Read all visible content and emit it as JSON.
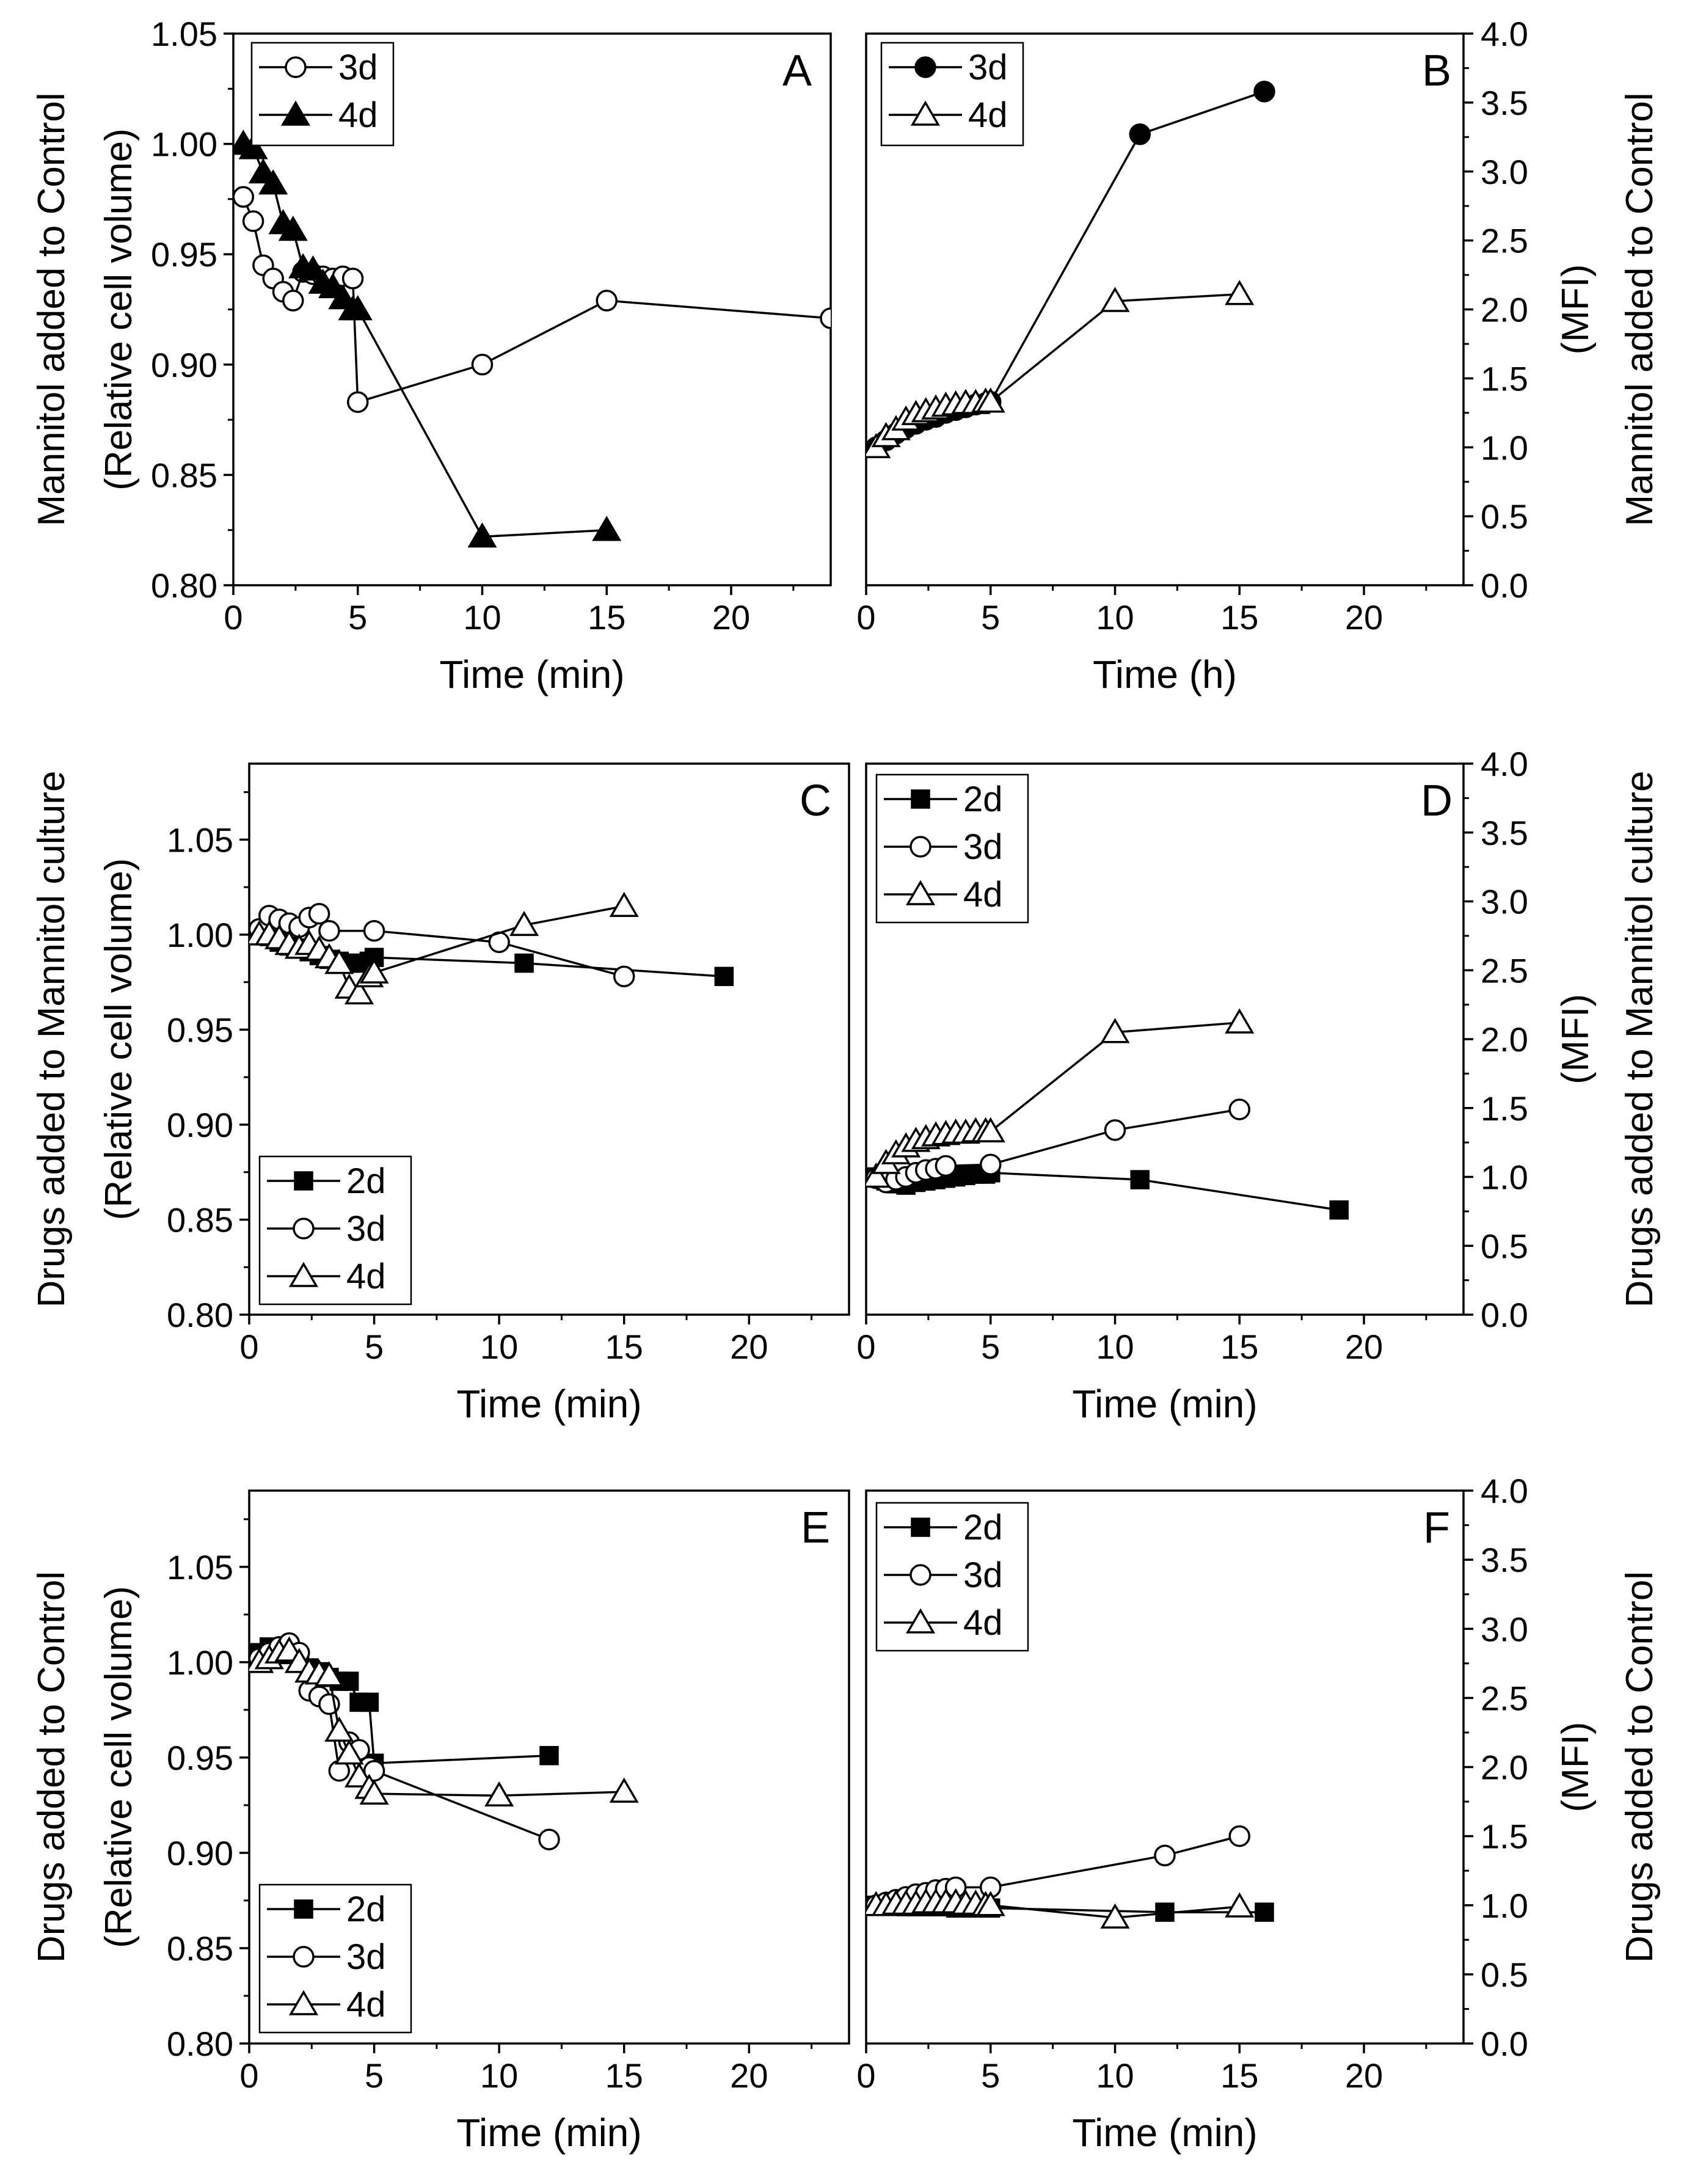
{
  "chart_data": [
    {
      "panel": "A",
      "type": "line",
      "xlabel": "Time (min)",
      "ylabel_lines": [
        "Mannitol added to Control",
        "(Relative cell volume)"
      ],
      "xlim": [
        0,
        24
      ],
      "ylim": [
        0.8,
        1.05
      ],
      "xticks": [
        "0",
        "5",
        "10",
        "15",
        "20"
      ],
      "yticks": [
        "0.80",
        "0.85",
        "0.90",
        "0.95",
        "1.00",
        "1.05"
      ],
      "legend_position": "top-left",
      "series": [
        {
          "name": "3d",
          "marker": "circle",
          "filled": false,
          "x": [
            0.4,
            0.8,
            1.2,
            1.6,
            2.0,
            2.4,
            2.8,
            3.2,
            3.6,
            4.0,
            4.4,
            4.8,
            5.0,
            10,
            15,
            24
          ],
          "y": [
            0.976,
            0.965,
            0.945,
            0.939,
            0.933,
            0.929,
            0.942,
            0.941,
            0.94,
            0.939,
            0.94,
            0.939,
            0.883,
            0.9,
            0.929,
            0.921
          ]
        },
        {
          "name": "4d",
          "marker": "triangle",
          "filled": true,
          "x": [
            0.4,
            0.8,
            1.2,
            1.6,
            2.0,
            2.4,
            2.8,
            3.2,
            3.6,
            4.0,
            4.4,
            4.8,
            5.0,
            10,
            15
          ],
          "y": [
            1.0,
            0.998,
            0.987,
            0.982,
            0.964,
            0.961,
            0.944,
            0.943,
            0.937,
            0.935,
            0.93,
            0.925,
            0.925,
            0.822,
            0.825
          ]
        }
      ]
    },
    {
      "panel": "B",
      "type": "line",
      "xlabel": "Time (h)",
      "ylabel_lines": [
        "Mannitol added to Control",
        "(MFI)"
      ],
      "xlim": [
        0,
        24
      ],
      "ylim": [
        0,
        4.0
      ],
      "xticks": [
        "0",
        "5",
        "10",
        "15",
        "20"
      ],
      "yticks": [
        "0.0",
        "0.5",
        "1.0",
        "1.5",
        "2.0",
        "2.5",
        "3.0",
        "3.5",
        "4.0"
      ],
      "legend_position": "top-left",
      "series": [
        {
          "name": "3d",
          "marker": "circle",
          "filled": true,
          "x": [
            0.4,
            0.8,
            1.2,
            1.6,
            2.0,
            2.4,
            2.8,
            3.2,
            3.6,
            4.0,
            4.4,
            4.8,
            5.0,
            11,
            16
          ],
          "y": [
            1.0,
            1.05,
            1.1,
            1.14,
            1.17,
            1.2,
            1.22,
            1.25,
            1.27,
            1.29,
            1.31,
            1.32,
            1.33,
            3.27,
            3.58
          ]
        },
        {
          "name": "4d",
          "marker": "triangle",
          "filled": false,
          "x": [
            0.4,
            0.8,
            1.2,
            1.6,
            2.0,
            2.4,
            2.8,
            3.2,
            3.6,
            4.0,
            4.4,
            4.8,
            5.0,
            10,
            15
          ],
          "y": [
            1.0,
            1.08,
            1.13,
            1.2,
            1.24,
            1.26,
            1.28,
            1.3,
            1.31,
            1.32,
            1.32,
            1.33,
            1.33,
            2.06,
            2.11
          ]
        }
      ]
    },
    {
      "panel": "C",
      "type": "line",
      "xlabel": "Time (min)",
      "ylabel_lines": [
        "Drugs added to Mannitol culture",
        "(Relative cell volume)"
      ],
      "xlim": [
        0,
        24
      ],
      "ylim": [
        0.8,
        1.09
      ],
      "xticks": [
        "0",
        "5",
        "10",
        "15",
        "20"
      ],
      "yticks": [
        "0.80",
        "0.85",
        "0.90",
        "0.95",
        "1.00",
        "1.05"
      ],
      "legend_position": "bottom-left",
      "series": [
        {
          "name": "2d",
          "marker": "square",
          "filled": true,
          "x": [
            0.4,
            0.8,
            1.2,
            1.6,
            2.0,
            2.4,
            2.8,
            3.2,
            3.6,
            4.0,
            4.4,
            4.8,
            5.0,
            11,
            19
          ],
          "y": [
            1.0,
            0.999,
            0.996,
            0.994,
            0.993,
            0.991,
            0.989,
            0.987,
            0.986,
            0.985,
            0.985,
            0.986,
            0.988,
            0.985,
            0.978
          ]
        },
        {
          "name": "3d",
          "marker": "circle",
          "filled": false,
          "x": [
            0.4,
            0.8,
            1.2,
            1.6,
            2.0,
            2.4,
            2.8,
            3.2,
            5.0,
            10,
            15
          ],
          "y": [
            1.003,
            1.01,
            1.008,
            1.006,
            1.004,
            1.009,
            1.011,
            1.002,
            1.002,
            0.996,
            0.978
          ]
        },
        {
          "name": "4d",
          "marker": "triangle",
          "filled": false,
          "x": [
            0.4,
            0.8,
            1.2,
            1.6,
            2.0,
            2.4,
            2.8,
            3.2,
            3.6,
            4.0,
            4.4,
            4.8,
            5.0,
            11,
            15
          ],
          "y": [
            1.0,
            1.0,
            0.998,
            0.995,
            0.993,
            0.995,
            0.992,
            0.988,
            0.985,
            0.972,
            0.969,
            0.978,
            0.98,
            1.005,
            1.015
          ]
        }
      ]
    },
    {
      "panel": "D",
      "type": "line",
      "xlabel": "Time (min)",
      "ylabel_lines": [
        "Drugs added to Mannitol culture",
        "(MFI)"
      ],
      "xlim": [
        0,
        24
      ],
      "ylim": [
        0,
        4.0
      ],
      "xticks": [
        "0",
        "5",
        "10",
        "15",
        "20"
      ],
      "yticks": [
        "0.0",
        "0.5",
        "1.0",
        "1.5",
        "2.0",
        "2.5",
        "3.0",
        "3.5",
        "4.0"
      ],
      "legend_position": "top-left",
      "series": [
        {
          "name": "2d",
          "marker": "square",
          "filled": true,
          "x": [
            0.4,
            0.8,
            1.2,
            1.6,
            2.0,
            2.4,
            2.8,
            3.2,
            3.6,
            4.0,
            4.4,
            4.8,
            5.0,
            11,
            19
          ],
          "y": [
            1.0,
            0.97,
            0.95,
            0.94,
            0.96,
            0.97,
            0.98,
            0.99,
            1.0,
            1.01,
            1.02,
            1.02,
            1.03,
            0.98,
            0.76
          ]
        },
        {
          "name": "3d",
          "marker": "circle",
          "filled": false,
          "x": [
            0.4,
            0.8,
            1.2,
            1.6,
            2.0,
            2.4,
            2.8,
            3.2,
            5.0,
            10,
            15
          ],
          "y": [
            0.99,
            0.96,
            0.98,
            1.0,
            1.03,
            1.05,
            1.06,
            1.08,
            1.09,
            1.34,
            1.49
          ]
        },
        {
          "name": "4d",
          "marker": "triangle",
          "filled": false,
          "x": [
            0.4,
            0.8,
            1.2,
            1.6,
            2.0,
            2.4,
            2.8,
            3.2,
            3.6,
            4.0,
            4.4,
            4.8,
            5.0,
            10,
            15
          ],
          "y": [
            1.0,
            1.1,
            1.17,
            1.22,
            1.26,
            1.28,
            1.3,
            1.31,
            1.32,
            1.32,
            1.33,
            1.33,
            1.33,
            2.05,
            2.12
          ]
        }
      ]
    },
    {
      "panel": "E",
      "type": "line",
      "xlabel": "Time (min)",
      "ylabel_lines": [
        "Drugs added to Control",
        "(Relative cell volume)"
      ],
      "xlim": [
        0,
        24
      ],
      "ylim": [
        0.8,
        1.09
      ],
      "xticks": [
        "0",
        "5",
        "10",
        "15",
        "20"
      ],
      "yticks": [
        "0.80",
        "0.85",
        "0.90",
        "0.95",
        "1.00",
        "1.05"
      ],
      "legend_position": "bottom-left",
      "series": [
        {
          "name": "2d",
          "marker": "square",
          "filled": true,
          "x": [
            0.4,
            0.8,
            1.2,
            1.6,
            2.0,
            2.4,
            2.8,
            3.2,
            3.6,
            4.0,
            4.4,
            4.8,
            5.0,
            12
          ],
          "y": [
            1.005,
            1.008,
            1.006,
            1.004,
            1.001,
            0.997,
            0.995,
            0.992,
            0.99,
            0.99,
            0.979,
            0.979,
            0.947,
            0.951
          ]
        },
        {
          "name": "3d",
          "marker": "circle",
          "filled": false,
          "x": [
            0.4,
            0.8,
            1.2,
            1.6,
            2.0,
            2.4,
            2.8,
            3.2,
            3.6,
            4.0,
            4.4,
            4.8,
            5.0,
            12
          ],
          "y": [
            1.002,
            1.005,
            1.008,
            1.01,
            1.005,
            0.985,
            0.982,
            0.978,
            0.943,
            0.958,
            0.954,
            0.945,
            0.943,
            0.907
          ]
        },
        {
          "name": "4d",
          "marker": "triangle",
          "filled": false,
          "x": [
            0.4,
            0.8,
            1.2,
            1.6,
            2.0,
            2.4,
            2.8,
            3.2,
            3.6,
            4.0,
            4.4,
            4.8,
            5.0,
            10,
            15
          ],
          "y": [
            1.0,
            1.002,
            1.005,
            1.006,
            1.0,
            0.995,
            0.994,
            0.993,
            0.964,
            0.952,
            0.94,
            0.934,
            0.931,
            0.93,
            0.932
          ]
        }
      ]
    },
    {
      "panel": "F",
      "type": "line",
      "xlabel": "Time (min)",
      "ylabel_lines": [
        "Drugs added to Control",
        "(MFI)"
      ],
      "xlim": [
        0,
        24
      ],
      "ylim": [
        0,
        4.0
      ],
      "xticks": [
        "0",
        "5",
        "10",
        "15",
        "20"
      ],
      "yticks": [
        "0.0",
        "0.5",
        "1.0",
        "1.5",
        "2.0",
        "2.5",
        "3.0",
        "3.5",
        "4.0"
      ],
      "legend_position": "top-left",
      "series": [
        {
          "name": "2d",
          "marker": "square",
          "filled": true,
          "x": [
            0.4,
            0.8,
            1.2,
            1.6,
            2.0,
            2.4,
            2.8,
            3.2,
            3.6,
            4.0,
            4.4,
            4.8,
            5.0,
            12,
            16
          ],
          "y": [
            1.0,
            1.0,
            1.0,
            0.99,
            0.99,
            0.99,
            0.99,
            0.99,
            0.98,
            0.98,
            0.98,
            0.98,
            0.98,
            0.95,
            0.95
          ]
        },
        {
          "name": "3d",
          "marker": "circle",
          "filled": false,
          "x": [
            0.4,
            0.8,
            1.2,
            1.6,
            2.0,
            2.4,
            2.8,
            3.2,
            3.6,
            5.0,
            12,
            15
          ],
          "y": [
            1.0,
            1.02,
            1.04,
            1.06,
            1.08,
            1.09,
            1.11,
            1.12,
            1.13,
            1.13,
            1.36,
            1.5
          ]
        },
        {
          "name": "4d",
          "marker": "triangle",
          "filled": false,
          "x": [
            0.4,
            0.8,
            1.2,
            1.6,
            2.0,
            2.4,
            2.8,
            3.2,
            3.6,
            4.0,
            4.4,
            4.8,
            5.0,
            10,
            15
          ],
          "y": [
            1.0,
            1.0,
            1.01,
            1.01,
            1.01,
            1.02,
            1.02,
            1.02,
            1.02,
            1.01,
            1.01,
            1.0,
            1.0,
            0.91,
            0.99
          ]
        }
      ]
    }
  ]
}
